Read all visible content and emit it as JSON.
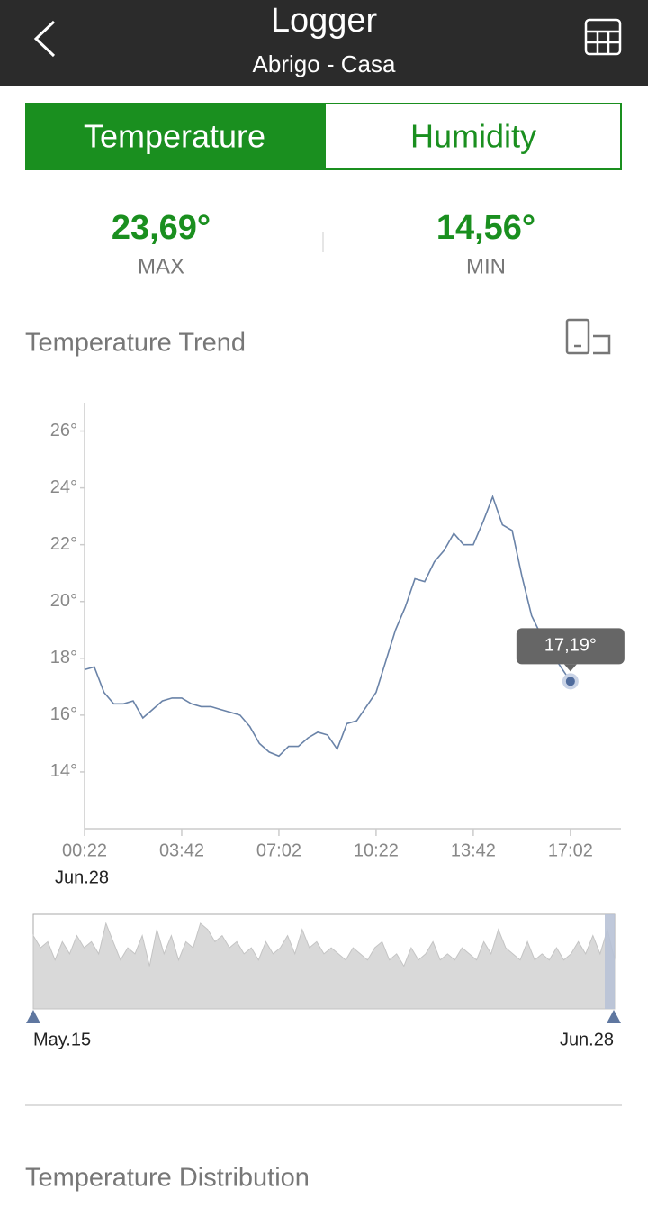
{
  "header": {
    "title": "Logger",
    "subtitle": "Abrigo - Casa"
  },
  "tabs": [
    "Temperature",
    "Humidity"
  ],
  "stats": [
    {
      "value": "23,69°",
      "label": "MAX"
    },
    {
      "value": "14,56°",
      "label": "MIN"
    }
  ],
  "trend_title": "Temperature Trend",
  "chart_data": {
    "type": "line",
    "color": "#6a83a8",
    "x": [
      "00:22",
      "00:42",
      "01:02",
      "01:22",
      "01:42",
      "02:02",
      "02:22",
      "02:42",
      "03:02",
      "03:22",
      "03:42",
      "04:02",
      "04:22",
      "04:42",
      "05:02",
      "05:22",
      "05:42",
      "06:02",
      "06:22",
      "06:42",
      "07:02",
      "07:22",
      "07:42",
      "08:02",
      "08:22",
      "08:42",
      "09:02",
      "09:22",
      "09:42",
      "10:02",
      "10:22",
      "10:42",
      "11:02",
      "11:22",
      "11:42",
      "12:02",
      "12:22",
      "12:42",
      "13:02",
      "13:22",
      "13:42",
      "14:02",
      "14:22",
      "14:42",
      "15:02",
      "15:22",
      "15:42",
      "16:02",
      "16:22",
      "16:42",
      "17:02"
    ],
    "values": [
      17.6,
      17.7,
      16.8,
      16.4,
      16.4,
      16.5,
      15.9,
      16.2,
      16.5,
      16.6,
      16.6,
      16.4,
      16.3,
      16.3,
      16.2,
      16.1,
      16.0,
      15.6,
      15.0,
      14.7,
      14.56,
      14.9,
      14.9,
      15.2,
      15.4,
      15.3,
      14.8,
      15.7,
      15.8,
      16.3,
      16.8,
      17.9,
      19.0,
      19.8,
      20.8,
      20.7,
      21.4,
      21.8,
      22.4,
      22.0,
      22.0,
      22.8,
      23.69,
      22.7,
      22.5,
      20.9,
      19.5,
      18.8,
      18.2,
      17.7,
      17.19
    ],
    "xlim": [
      "00:22",
      "18:46"
    ],
    "xticks": [
      "00:22",
      "03:42",
      "07:02",
      "10:22",
      "13:42",
      "17:02"
    ],
    "date_label": "Jun.28",
    "ylim": [
      12,
      27
    ],
    "yticks": [
      {
        "value": 14,
        "label": "14°"
      },
      {
        "value": 16,
        "label": "16°"
      },
      {
        "value": 18,
        "label": "18°"
      },
      {
        "value": 20,
        "label": "20°"
      },
      {
        "value": 22,
        "label": "22°"
      },
      {
        "value": 24,
        "label": "24°"
      },
      {
        "value": 26,
        "label": "26°"
      }
    ],
    "annotations": [
      {
        "text": "17,19°",
        "x": "17:02",
        "value": 17.19
      }
    ]
  },
  "navigator": {
    "type": "area",
    "color": "#d9d9d9",
    "values": [
      20,
      18,
      19,
      16,
      19,
      17,
      20,
      18,
      19,
      17,
      22,
      19,
      16,
      18,
      17,
      20,
      15,
      21,
      17,
      20,
      16,
      19,
      18,
      22,
      21,
      19,
      20,
      18,
      19,
      17,
      18,
      16,
      19,
      17,
      18,
      20,
      17,
      21,
      18,
      19,
      17,
      18,
      17,
      16,
      18,
      17,
      16,
      18,
      19,
      16,
      17,
      15,
      18,
      16,
      17,
      19,
      16,
      17,
      16,
      18,
      17,
      16,
      19,
      17,
      21,
      18,
      17,
      16,
      19,
      16,
      17,
      16,
      18,
      16,
      17,
      19,
      17,
      20,
      17,
      21,
      16
    ],
    "labels": [
      "May.15",
      "Jun.28"
    ]
  },
  "distribution_title": "Temperature Distribution"
}
